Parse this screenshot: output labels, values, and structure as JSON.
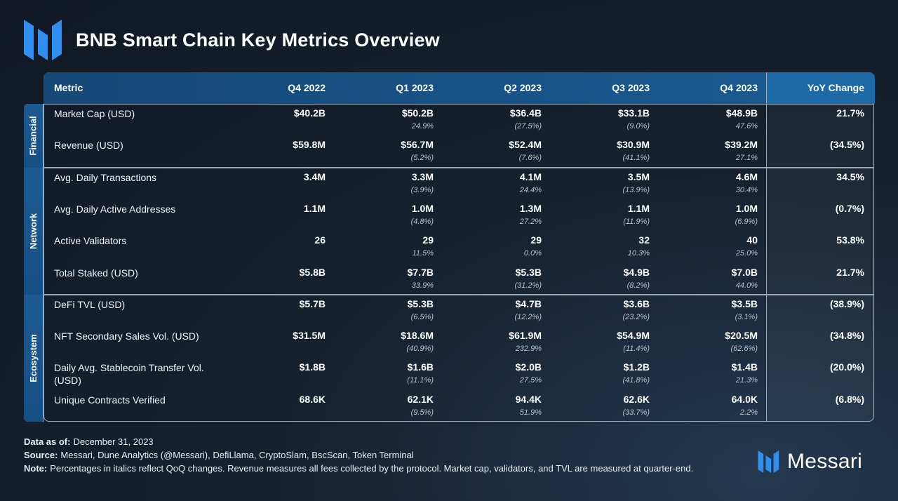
{
  "title": "BNB Smart Chain Key Metrics Overview",
  "colors": {
    "accent": "#1a5a92",
    "logo_blue": "#2f8ff0"
  },
  "header": [
    "Metric",
    "Q4 2022",
    "Q1 2023",
    "Q2 2023",
    "Q3 2023",
    "Q4 2023",
    "YoY Change"
  ],
  "groups": [
    {
      "label": "Financial",
      "rows": [
        {
          "metric": "Market Cap (USD)",
          "values": [
            "$40.2B",
            "$50.2B",
            "$36.4B",
            "$33.1B",
            "$48.9B"
          ],
          "changes": [
            "24.9%",
            "(27.5%)",
            "(9.0%)",
            "47.6%"
          ],
          "yoy": "21.7%"
        },
        {
          "metric": "Revenue (USD)",
          "values": [
            "$59.8M",
            "$56.7M",
            "$52.4M",
            "$30.9M",
            "$39.2M"
          ],
          "changes": [
            "(5.2%)",
            "(7.6%)",
            "(41.1%)",
            "27.1%"
          ],
          "yoy": "(34.5%)"
        }
      ]
    },
    {
      "label": "Network",
      "rows": [
        {
          "metric": "Avg. Daily Transactions",
          "values": [
            "3.4M",
            "3.3M",
            "4.1M",
            "3.5M",
            "4.6M"
          ],
          "changes": [
            "(3.9%)",
            "24.4%",
            "(13.9%)",
            "30.4%"
          ],
          "yoy": "34.5%"
        },
        {
          "metric": "Avg. Daily Active Addresses",
          "values": [
            "1.1M",
            "1.0M",
            "1.3M",
            "1.1M",
            "1.0M"
          ],
          "changes": [
            "(4.8%)",
            "27.2%",
            "(11.9%)",
            "(6.9%)"
          ],
          "yoy": "(0.7%)"
        },
        {
          "metric": "Active Validators",
          "values": [
            "26",
            "29",
            "29",
            "32",
            "40"
          ],
          "changes": [
            "11.5%",
            "0.0%",
            "10.3%",
            "25.0%"
          ],
          "yoy": "53.8%"
        },
        {
          "metric": "Total Staked (USD)",
          "values": [
            "$5.8B",
            "$7.7B",
            "$5.3B",
            "$4.9B",
            "$7.0B"
          ],
          "changes": [
            "33.9%",
            "(31.2%)",
            "(8.2%)",
            "44.0%"
          ],
          "yoy": "21.7%"
        }
      ]
    },
    {
      "label": "Ecosystem",
      "rows": [
        {
          "metric": "DeFi TVL (USD)",
          "values": [
            "$5.7B",
            "$5.3B",
            "$4.7B",
            "$3.6B",
            "$3.5B"
          ],
          "changes": [
            "(6.5%)",
            "(12.2%)",
            "(23.2%)",
            "(3.1%)"
          ],
          "yoy": "(38.9%)"
        },
        {
          "metric": "NFT Secondary Sales Vol. (USD)",
          "values": [
            "$31.5M",
            "$18.6M",
            "$61.9M",
            "$54.9M",
            "$20.5M"
          ],
          "changes": [
            "(40.9%)",
            "232.9%",
            "(11.4%)",
            "(62.6%)"
          ],
          "yoy": "(34.8%)"
        },
        {
          "metric": "Daily Avg. Stablecoin Transfer Vol. (USD)",
          "metric_lines": [
            "Daily Avg. Stablecoin Transfer Vol.",
            "(USD)"
          ],
          "values": [
            "$1.8B",
            "$1.6B",
            "$2.0B",
            "$1.2B",
            "$1.4B"
          ],
          "changes": [
            "(11.1%)",
            "27.5%",
            "(41.8%)",
            "21.3%"
          ],
          "yoy": "(20.0%)"
        },
        {
          "metric": "Unique Contracts Verified",
          "values": [
            "68.6K",
            "62.1K",
            "94.4K",
            "62.6K",
            "64.0K"
          ],
          "changes": [
            "(9.5%)",
            "51.9%",
            "(33.7%)",
            "2.2%"
          ],
          "yoy": "(6.8%)"
        }
      ]
    }
  ],
  "footer": {
    "as_of_label": "Data as of:",
    "as_of": "December 31, 2023",
    "source_label": "Source:",
    "source": "Messari, Dune Analytics (@Messari), DefiLlama, CryptoSlam, BscScan, Token Terminal",
    "note_label": "Note:",
    "note": "Percentages in italics reflect QoQ changes. Revenue measures all fees collected by the protocol. Market cap, validators, and TVL are measured at quarter-end."
  },
  "brand": {
    "name": "Messari",
    "icon": "messari-logo-icon"
  }
}
